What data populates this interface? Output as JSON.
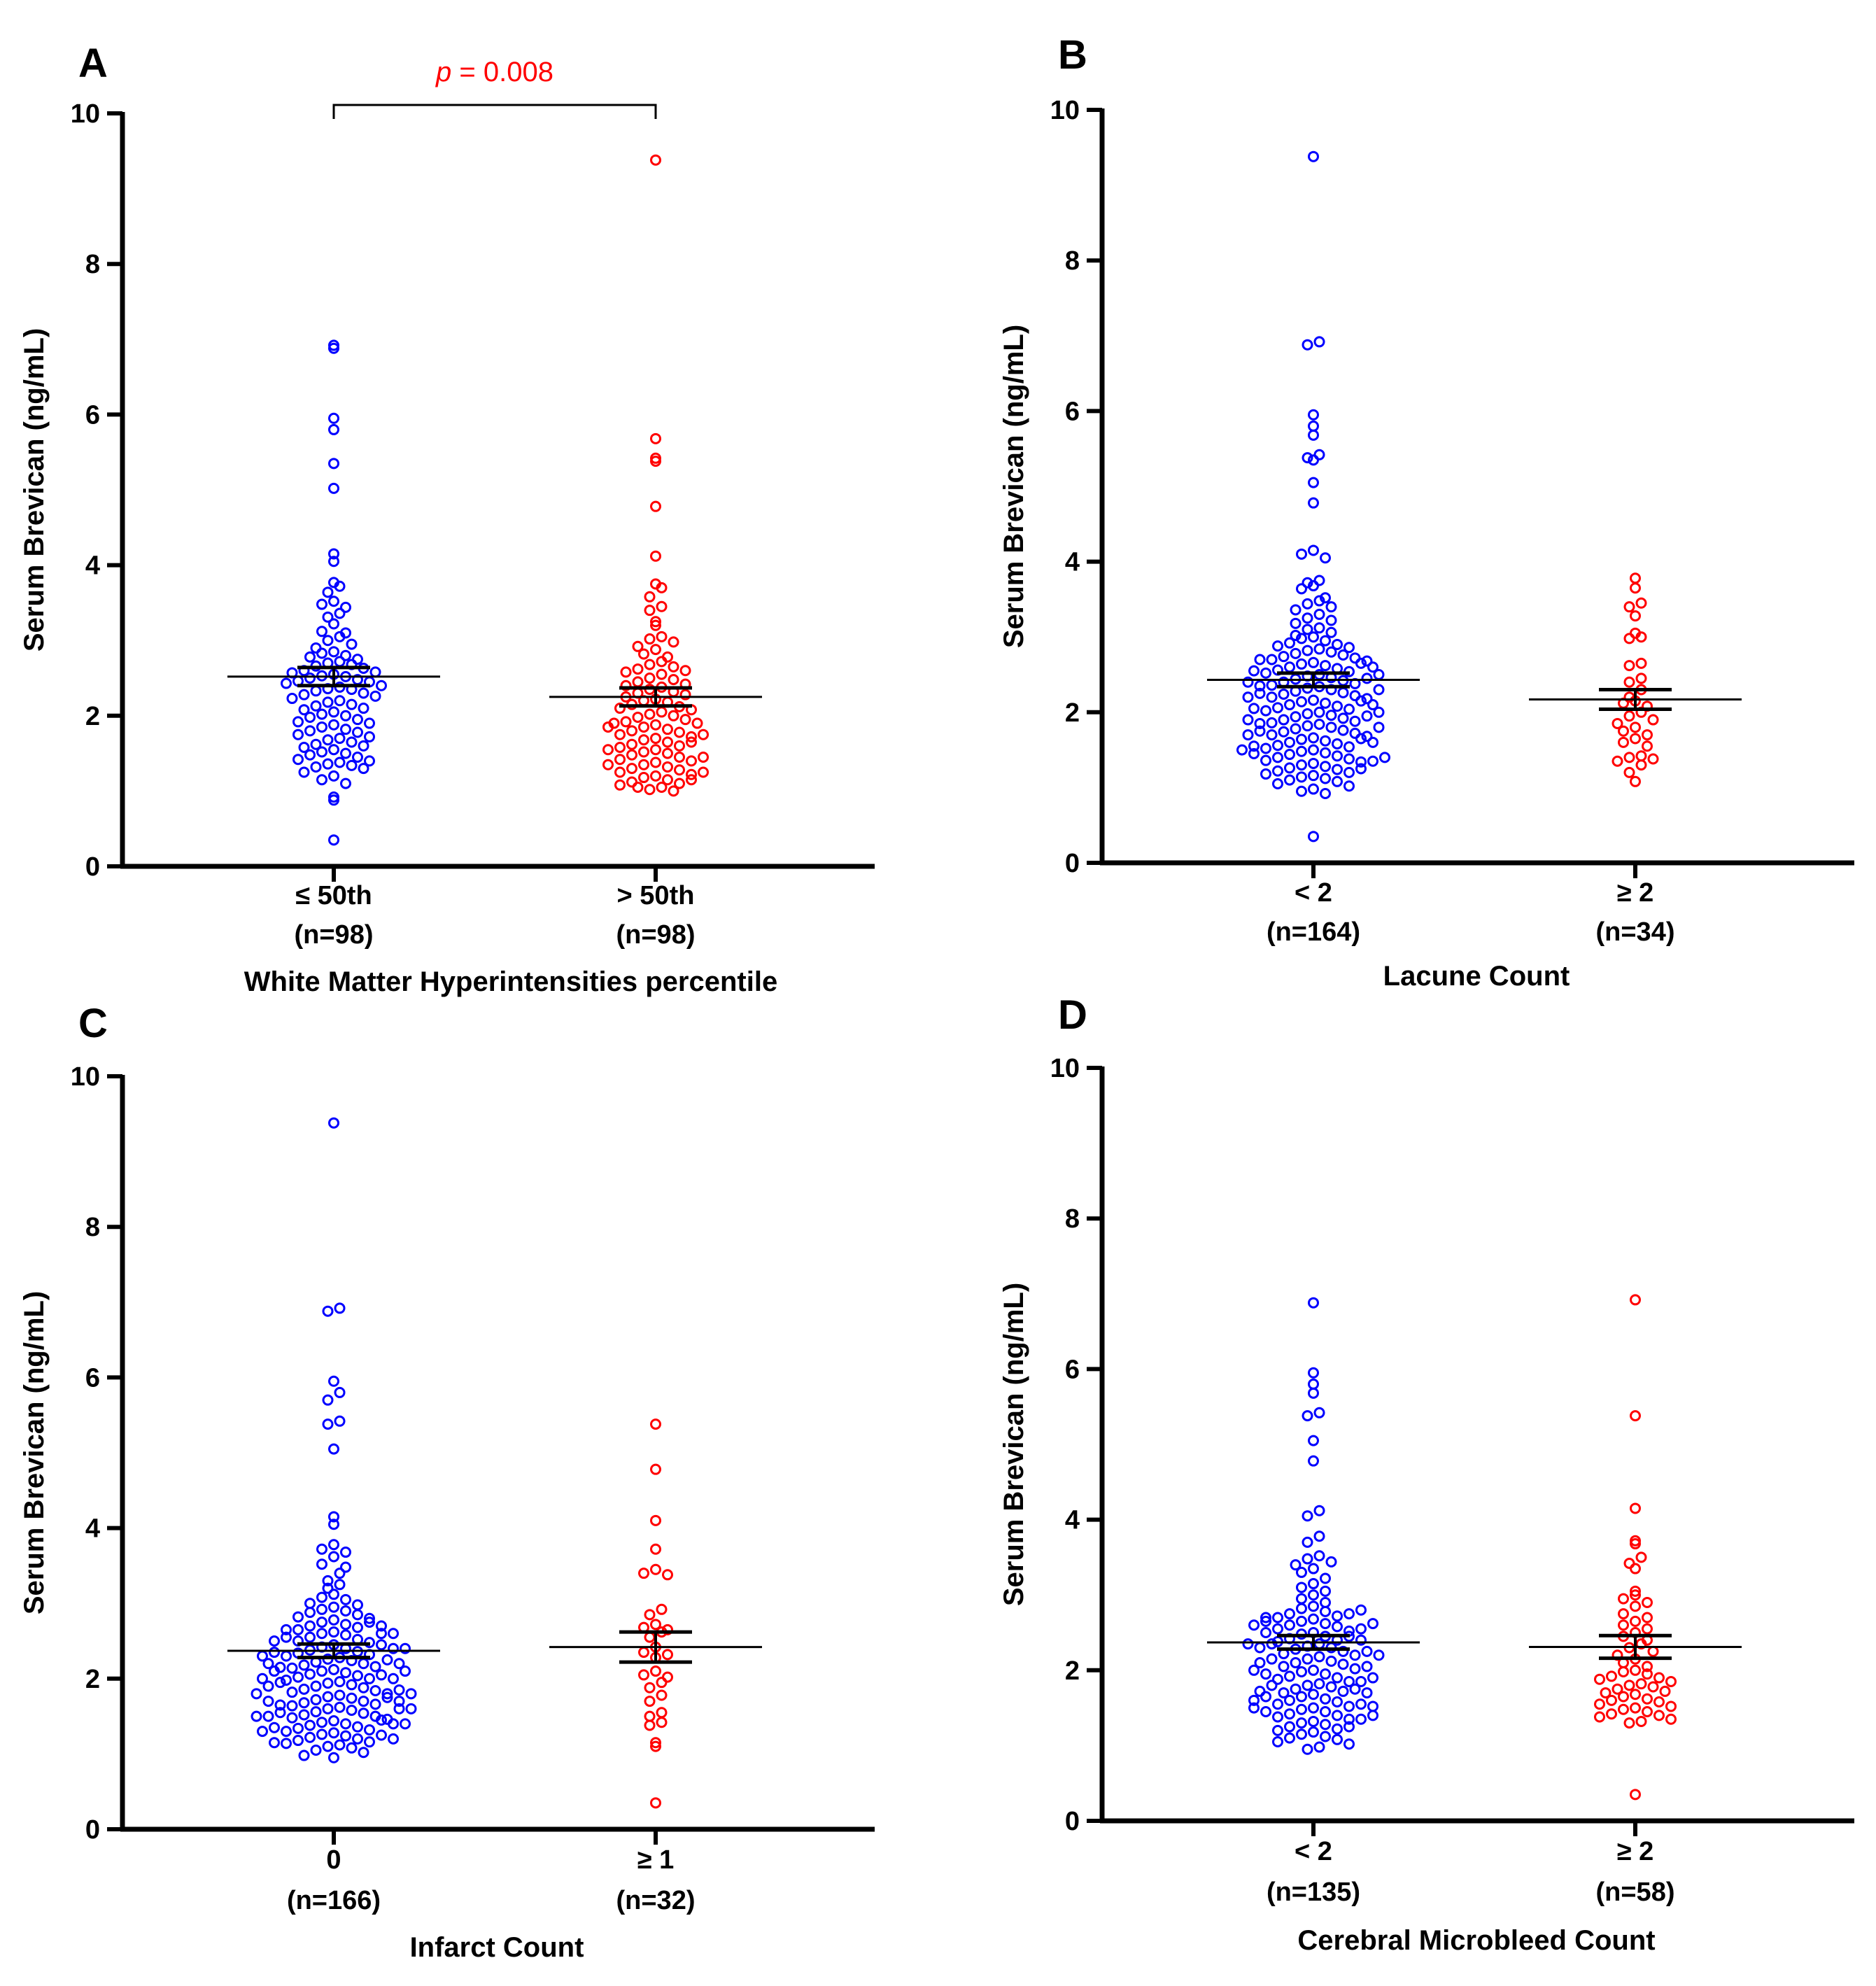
{
  "colors": {
    "group1": "#0000ff",
    "group2": "#ff0000",
    "axis": "#000000",
    "annotation": "#ff0000"
  },
  "chart_data": [
    {
      "type": "scatter",
      "panel": "A",
      "ylabel": "Serum Brevican (ng/mL)",
      "ylim": [
        0,
        10
      ],
      "yticks": [
        "0",
        "2",
        "4",
        "6",
        "8",
        "10"
      ],
      "xlabel": "White Matter Hyperintensities percentile",
      "annotation": {
        "p_label": "p",
        "p_value": " = 0.008"
      },
      "groups": [
        {
          "label": "≤ 50th",
          "n_label": "(n=98)",
          "color": "#0000ff",
          "mean": 2.52,
          "sem": 0.12,
          "values": [
            6.92,
            6.88,
            5.95,
            5.8,
            5.35,
            5.02,
            4.15,
            4.05,
            3.77,
            3.72,
            3.64,
            3.52,
            3.48,
            3.44,
            3.36,
            3.31,
            3.22,
            3.12,
            3.1,
            3.05,
            3.0,
            2.95,
            2.9,
            2.85,
            2.83,
            2.8,
            2.78,
            2.75,
            2.72,
            2.7,
            2.68,
            2.66,
            2.63,
            2.6,
            2.58,
            2.57,
            2.55,
            2.53,
            2.52,
            2.5,
            2.48,
            2.46,
            2.45,
            2.43,
            2.4,
            2.38,
            2.36,
            2.35,
            2.33,
            2.3,
            2.28,
            2.26,
            2.23,
            2.2,
            2.18,
            2.15,
            2.13,
            2.1,
            2.08,
            2.05,
            2.02,
            2.0,
            1.98,
            1.95,
            1.92,
            1.9,
            1.88,
            1.85,
            1.82,
            1.8,
            1.78,
            1.75,
            1.72,
            1.7,
            1.68,
            1.65,
            1.62,
            1.6,
            1.58,
            1.55,
            1.52,
            1.5,
            1.48,
            1.45,
            1.42,
            1.4,
            1.38,
            1.36,
            1.34,
            1.32,
            1.3,
            1.25,
            1.2,
            1.15,
            1.1,
            0.92,
            0.88,
            0.35
          ]
        },
        {
          "label": "> 50th",
          "n_label": "(n=98)",
          "color": "#ff0000",
          "mean": 2.25,
          "sem": 0.12,
          "values": [
            9.38,
            5.68,
            5.42,
            5.38,
            4.78,
            4.12,
            3.75,
            3.7,
            3.58,
            3.45,
            3.4,
            3.25,
            3.2,
            3.05,
            3.02,
            2.98,
            2.92,
            2.88,
            2.82,
            2.78,
            2.72,
            2.68,
            2.65,
            2.62,
            2.6,
            2.58,
            2.55,
            2.5,
            2.48,
            2.45,
            2.42,
            2.4,
            2.38,
            2.35,
            2.32,
            2.3,
            2.28,
            2.25,
            2.22,
            2.2,
            2.18,
            2.15,
            2.12,
            2.1,
            2.08,
            2.05,
            2.02,
            2.0,
            1.98,
            1.95,
            1.92,
            1.9,
            1.88,
            1.85,
            1.82,
            1.8,
            1.78,
            1.75,
            1.72,
            1.7,
            1.68,
            1.65,
            1.62,
            1.6,
            1.58,
            1.55,
            1.52,
            1.5,
            1.48,
            1.45,
            1.42,
            1.4,
            1.38,
            1.35,
            1.32,
            1.3,
            1.28,
            1.25,
            1.22,
            1.2,
            1.18,
            1.15,
            1.12,
            1.1,
            1.08,
            1.05,
            1.02,
            1.0,
            1.9,
            1.85,
            1.75,
            1.65,
            1.55,
            1.45,
            1.35,
            1.25,
            1.15,
            1.05
          ]
        }
      ]
    },
    {
      "type": "scatter",
      "panel": "B",
      "ylabel": "Serum Brevican (ng/mL)",
      "ylim": [
        0,
        10
      ],
      "yticks": [
        "0",
        "2",
        "4",
        "6",
        "8",
        "10"
      ],
      "xlabel": "Lacune Count",
      "groups": [
        {
          "label": "< 2",
          "n_label": "(n=164)",
          "color": "#0000ff",
          "mean": 2.43,
          "sem": 0.09,
          "values": [
            9.38,
            6.92,
            6.88,
            5.95,
            5.8,
            5.68,
            5.42,
            5.38,
            5.35,
            5.05,
            4.78,
            4.15,
            4.1,
            4.05,
            3.75,
            3.72,
            3.68,
            3.64,
            3.52,
            3.48,
            3.44,
            3.4,
            3.36,
            3.3,
            3.25,
            3.22,
            3.18,
            3.12,
            3.1,
            3.06,
            3.02,
            3.0,
            2.98,
            2.95,
            2.92,
            2.9,
            2.88,
            2.86,
            2.84,
            2.82,
            2.8,
            2.78,
            2.76,
            2.74,
            2.72,
            2.7,
            2.68,
            2.66,
            2.64,
            2.62,
            2.6,
            2.58,
            2.56,
            2.54,
            2.52,
            2.5,
            2.48,
            2.46,
            2.44,
            2.42,
            2.4,
            2.38,
            2.36,
            2.34,
            2.32,
            2.3,
            2.28,
            2.26,
            2.24,
            2.22,
            2.2,
            2.18,
            2.16,
            2.14,
            2.12,
            2.1,
            2.08,
            2.06,
            2.04,
            2.02,
            2.0,
            1.98,
            1.96,
            1.94,
            1.92,
            1.9,
            1.88,
            1.86,
            1.84,
            1.82,
            1.8,
            1.78,
            1.76,
            1.74,
            1.72,
            1.7,
            1.68,
            1.66,
            1.64,
            1.62,
            1.6,
            1.58,
            1.56,
            1.54,
            1.52,
            1.5,
            1.48,
            1.46,
            1.44,
            1.42,
            1.4,
            1.38,
            1.36,
            1.34,
            1.32,
            1.3,
            1.28,
            1.26,
            1.24,
            1.22,
            1.2,
            1.18,
            1.16,
            1.14,
            1.12,
            1.1,
            1.08,
            1.05,
            1.02,
            0.98,
            0.95,
            0.92,
            0.35,
            2.7,
            2.65,
            2.55,
            2.45,
            2.35,
            2.25,
            2.15,
            2.05,
            1.95,
            1.85,
            1.75,
            1.65,
            1.55,
            1.45,
            1.35,
            1.25,
            2.6,
            2.5,
            2.4,
            2.3,
            2.2,
            2.1,
            2.0,
            1.9,
            1.8,
            1.7,
            1.6,
            1.5,
            1.4
          ]
        },
        {
          "label": "≥ 2",
          "n_label": "(n=34)",
          "color": "#ff0000",
          "mean": 2.17,
          "sem": 0.13,
          "values": [
            3.78,
            3.65,
            3.45,
            3.4,
            3.28,
            3.05,
            3.0,
            2.98,
            2.65,
            2.62,
            2.45,
            2.4,
            2.3,
            2.2,
            2.15,
            2.12,
            2.08,
            2.0,
            1.95,
            1.9,
            1.85,
            1.8,
            1.75,
            1.7,
            1.65,
            1.6,
            1.55,
            1.42,
            1.4,
            1.38,
            1.35,
            1.3,
            1.2,
            1.08
          ]
        }
      ]
    },
    {
      "type": "scatter",
      "panel": "C",
      "ylabel": "Serum Brevican (ng/mL)",
      "ylim": [
        0,
        10
      ],
      "yticks": [
        "0",
        "2",
        "4",
        "6",
        "8",
        "10"
      ],
      "xlabel": "Infarct Count",
      "groups": [
        {
          "label": "0",
          "n_label": "(n=166)",
          "color": "#0000ff",
          "mean": 2.37,
          "sem": 0.09,
          "values": [
            9.38,
            6.92,
            6.88,
            5.95,
            5.8,
            5.7,
            5.42,
            5.38,
            5.05,
            4.15,
            4.05,
            3.78,
            3.72,
            3.68,
            3.62,
            3.52,
            3.48,
            3.4,
            3.3,
            3.25,
            3.2,
            3.12,
            3.08,
            3.05,
            3.0,
            2.98,
            2.95,
            2.92,
            2.9,
            2.88,
            2.85,
            2.82,
            2.8,
            2.78,
            2.75,
            2.72,
            2.7,
            2.68,
            2.65,
            2.62,
            2.6,
            2.58,
            2.55,
            2.52,
            2.5,
            2.48,
            2.45,
            2.42,
            2.4,
            2.38,
            2.36,
            2.34,
            2.32,
            2.3,
            2.28,
            2.26,
            2.24,
            2.22,
            2.2,
            2.18,
            2.16,
            2.14,
            2.12,
            2.1,
            2.08,
            2.06,
            2.04,
            2.02,
            2.0,
            1.98,
            1.96,
            1.94,
            1.92,
            1.9,
            1.88,
            1.86,
            1.84,
            1.82,
            1.8,
            1.78,
            1.76,
            1.74,
            1.72,
            1.7,
            1.68,
            1.66,
            1.64,
            1.62,
            1.6,
            1.58,
            1.56,
            1.54,
            1.52,
            1.5,
            1.48,
            1.46,
            1.44,
            1.42,
            1.4,
            1.38,
            1.36,
            1.34,
            1.32,
            1.3,
            1.28,
            1.26,
            1.24,
            1.22,
            1.2,
            1.18,
            1.16,
            1.14,
            1.12,
            1.1,
            1.08,
            1.05,
            1.02,
            0.98,
            0.95,
            2.75,
            2.65,
            2.55,
            2.45,
            2.35,
            2.25,
            2.15,
            2.05,
            1.95,
            1.85,
            1.75,
            1.65,
            1.55,
            1.45,
            1.35,
            1.25,
            1.15,
            2.7,
            2.6,
            2.5,
            2.4,
            2.3,
            2.2,
            2.1,
            2.0,
            1.9,
            1.8,
            1.7,
            1.6,
            1.5,
            1.4,
            1.3,
            1.2,
            2.6,
            2.4,
            2.2,
            2.0,
            1.8,
            1.6,
            1.4,
            1.7,
            1.5,
            2.1
          ]
        },
        {
          "label": "≥ 1",
          "n_label": "(n=32)",
          "color": "#ff0000",
          "mean": 2.42,
          "sem": 0.2,
          "values": [
            5.38,
            4.78,
            4.1,
            3.72,
            3.45,
            3.4,
            3.38,
            2.92,
            2.85,
            2.72,
            2.68,
            2.65,
            2.62,
            2.55,
            2.42,
            2.35,
            2.32,
            2.28,
            2.1,
            2.05,
            2.02,
            1.95,
            1.88,
            1.78,
            1.7,
            1.55,
            1.5,
            1.42,
            1.38,
            1.15,
            1.1,
            0.35
          ]
        }
      ]
    },
    {
      "type": "scatter",
      "panel": "D",
      "ylabel": "Serum Brevican (ng/mL)",
      "ylim": [
        0,
        10
      ],
      "yticks": [
        "0",
        "2",
        "4",
        "6",
        "8",
        "10"
      ],
      "xlabel": "Cerebral Microbleed Count",
      "groups": [
        {
          "label": "< 2",
          "n_label": "(n=135)",
          "color": "#0000ff",
          "mean": 2.37,
          "sem": 0.09,
          "values": [
            6.88,
            5.95,
            5.8,
            5.68,
            5.42,
            5.38,
            5.05,
            4.78,
            4.12,
            4.05,
            3.78,
            3.7,
            3.52,
            3.48,
            3.44,
            3.4,
            3.35,
            3.3,
            3.22,
            3.15,
            3.1,
            3.05,
            3.0,
            2.95,
            2.9,
            2.85,
            2.82,
            2.78,
            2.75,
            2.72,
            2.7,
            2.68,
            2.65,
            2.62,
            2.6,
            2.58,
            2.55,
            2.52,
            2.5,
            2.48,
            2.45,
            2.42,
            2.4,
            2.38,
            2.35,
            2.32,
            2.3,
            2.28,
            2.25,
            2.22,
            2.2,
            2.18,
            2.15,
            2.12,
            2.1,
            2.08,
            2.05,
            2.02,
            2.0,
            1.98,
            1.95,
            1.92,
            1.9,
            1.88,
            1.85,
            1.82,
            1.8,
            1.78,
            1.75,
            1.72,
            1.7,
            1.68,
            1.65,
            1.62,
            1.6,
            1.58,
            1.55,
            1.52,
            1.5,
            1.48,
            1.45,
            1.42,
            1.4,
            1.38,
            1.35,
            1.32,
            1.3,
            1.28,
            1.25,
            1.22,
            1.2,
            1.18,
            1.15,
            1.12,
            1.1,
            1.08,
            1.05,
            1.02,
            0.98,
            0.95,
            2.75,
            2.65,
            2.55,
            2.45,
            2.35,
            2.25,
            2.15,
            2.05,
            1.95,
            1.85,
            1.75,
            1.65,
            1.55,
            1.45,
            1.35,
            1.25,
            2.7,
            2.6,
            2.5,
            2.4,
            2.3,
            2.2,
            2.1,
            2.0,
            1.9,
            1.8,
            1.7,
            1.6,
            1.5,
            1.4,
            2.8,
            2.62,
            1.72,
            1.52,
            2.35
          ]
        },
        {
          "label": "≥ 2",
          "n_label": "(n=58)",
          "color": "#ff0000",
          "mean": 2.31,
          "sem": 0.15,
          "values": [
            6.92,
            5.38,
            4.15,
            3.72,
            3.68,
            3.5,
            3.42,
            3.35,
            3.05,
            3.0,
            2.95,
            2.9,
            2.85,
            2.75,
            2.7,
            2.65,
            2.6,
            2.55,
            2.5,
            2.45,
            2.4,
            2.35,
            2.3,
            2.25,
            2.2,
            2.15,
            2.1,
            2.05,
            2.0,
            1.98,
            1.95,
            1.92,
            1.9,
            1.88,
            1.85,
            1.82,
            1.8,
            1.78,
            1.75,
            1.72,
            1.7,
            1.68,
            1.65,
            1.62,
            1.6,
            1.58,
            1.55,
            1.52,
            1.5,
            1.48,
            1.45,
            1.42,
            1.4,
            1.38,
            1.35,
            1.32,
            1.3,
            0.35
          ]
        }
      ]
    }
  ]
}
